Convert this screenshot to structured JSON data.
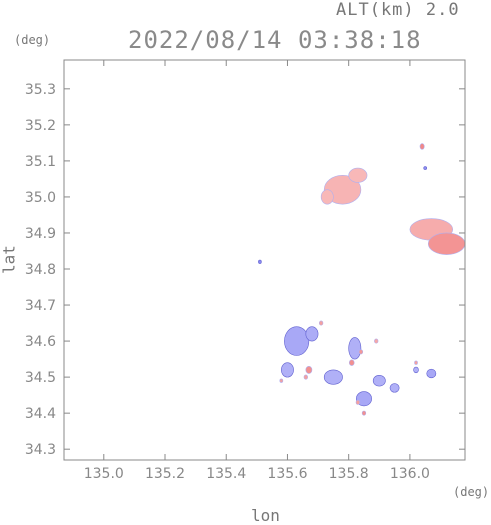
{
  "header": {
    "altitude_label": "ALT(km) 2.0",
    "datetime": "2022/08/14 03:38:18"
  },
  "axes": {
    "y_unit": "(deg)",
    "x_unit": "(deg)",
    "y_label": "lat",
    "x_label": "lon"
  },
  "chart_data": {
    "type": "heatmap",
    "title": "",
    "xlabel": "lon",
    "ylabel": "lat",
    "xlim": [
      134.87,
      136.18
    ],
    "ylim": [
      34.27,
      35.38
    ],
    "x_ticks": [
      135.0,
      135.2,
      135.4,
      135.6,
      135.8,
      136.0
    ],
    "x_tick_labels": [
      "135.0",
      "135.2",
      "135.4",
      "135.6",
      "135.8",
      "136.0"
    ],
    "y_ticks": [
      34.3,
      34.4,
      34.5,
      34.6,
      34.7,
      34.8,
      34.9,
      35.0,
      35.1,
      35.2,
      35.3
    ],
    "y_tick_labels": [
      "34.3",
      "34.4",
      "34.5",
      "34.6",
      "34.7",
      "34.8",
      "34.9",
      "35.0",
      "35.1",
      "35.2",
      "35.3"
    ],
    "colors": {
      "positive": "#f08080",
      "positive_light": "#fbd0d0",
      "negative": "#8080f0",
      "negative_light": "#d0d0fb"
    },
    "blobs": [
      {
        "lon": 135.78,
        "lat": 35.02,
        "rx": 0.06,
        "ry": 0.04,
        "sign": "positive",
        "intensity": 0.35
      },
      {
        "lon": 135.83,
        "lat": 35.06,
        "rx": 0.03,
        "ry": 0.02,
        "sign": "positive",
        "intensity": 0.3
      },
      {
        "lon": 135.73,
        "lat": 35.0,
        "rx": 0.02,
        "ry": 0.02,
        "sign": "positive",
        "intensity": 0.3
      },
      {
        "lon": 136.07,
        "lat": 34.91,
        "rx": 0.07,
        "ry": 0.03,
        "sign": "positive",
        "intensity": 0.45
      },
      {
        "lon": 136.12,
        "lat": 34.87,
        "rx": 0.06,
        "ry": 0.03,
        "sign": "positive",
        "intensity": 0.75
      },
      {
        "lon": 136.04,
        "lat": 35.14,
        "rx": 0.007,
        "ry": 0.008,
        "sign": "positive",
        "intensity": 0.9
      },
      {
        "lon": 136.05,
        "lat": 35.08,
        "rx": 0.004,
        "ry": 0.004,
        "sign": "negative",
        "intensity": 0.8
      },
      {
        "lon": 135.51,
        "lat": 34.82,
        "rx": 0.004,
        "ry": 0.005,
        "sign": "negative",
        "intensity": 0.9
      },
      {
        "lon": 135.63,
        "lat": 34.6,
        "rx": 0.04,
        "ry": 0.04,
        "sign": "negative",
        "intensity": 0.5
      },
      {
        "lon": 135.6,
        "lat": 34.52,
        "rx": 0.02,
        "ry": 0.02,
        "sign": "negative",
        "intensity": 0.4
      },
      {
        "lon": 135.68,
        "lat": 34.62,
        "rx": 0.02,
        "ry": 0.02,
        "sign": "negative",
        "intensity": 0.45
      },
      {
        "lon": 135.75,
        "lat": 34.5,
        "rx": 0.03,
        "ry": 0.02,
        "sign": "negative",
        "intensity": 0.4
      },
      {
        "lon": 135.82,
        "lat": 34.58,
        "rx": 0.02,
        "ry": 0.03,
        "sign": "negative",
        "intensity": 0.4
      },
      {
        "lon": 135.85,
        "lat": 34.44,
        "rx": 0.025,
        "ry": 0.02,
        "sign": "negative",
        "intensity": 0.5
      },
      {
        "lon": 135.9,
        "lat": 34.49,
        "rx": 0.02,
        "ry": 0.015,
        "sign": "negative",
        "intensity": 0.4
      },
      {
        "lon": 135.95,
        "lat": 34.47,
        "rx": 0.015,
        "ry": 0.012,
        "sign": "negative",
        "intensity": 0.4
      },
      {
        "lon": 136.07,
        "lat": 34.51,
        "rx": 0.015,
        "ry": 0.012,
        "sign": "negative",
        "intensity": 0.5
      },
      {
        "lon": 136.02,
        "lat": 34.52,
        "rx": 0.008,
        "ry": 0.008,
        "sign": "negative",
        "intensity": 0.4
      },
      {
        "lon": 135.67,
        "lat": 34.52,
        "rx": 0.01,
        "ry": 0.01,
        "sign": "positive",
        "intensity": 0.8
      },
      {
        "lon": 135.81,
        "lat": 34.54,
        "rx": 0.008,
        "ry": 0.008,
        "sign": "positive",
        "intensity": 0.8
      },
      {
        "lon": 135.84,
        "lat": 34.57,
        "rx": 0.006,
        "ry": 0.006,
        "sign": "positive",
        "intensity": 0.7
      },
      {
        "lon": 135.85,
        "lat": 34.4,
        "rx": 0.006,
        "ry": 0.006,
        "sign": "positive",
        "intensity": 0.8
      },
      {
        "lon": 135.83,
        "lat": 34.43,
        "rx": 0.006,
        "ry": 0.006,
        "sign": "positive",
        "intensity": 0.6
      },
      {
        "lon": 135.66,
        "lat": 34.5,
        "rx": 0.006,
        "ry": 0.006,
        "sign": "positive",
        "intensity": 0.6
      },
      {
        "lon": 135.71,
        "lat": 34.65,
        "rx": 0.006,
        "ry": 0.006,
        "sign": "positive",
        "intensity": 0.6
      },
      {
        "lon": 135.89,
        "lat": 34.6,
        "rx": 0.006,
        "ry": 0.006,
        "sign": "positive",
        "intensity": 0.5
      },
      {
        "lon": 136.02,
        "lat": 34.54,
        "rx": 0.005,
        "ry": 0.005,
        "sign": "positive",
        "intensity": 0.6
      },
      {
        "lon": 135.58,
        "lat": 34.49,
        "rx": 0.005,
        "ry": 0.005,
        "sign": "positive",
        "intensity": 0.6
      }
    ]
  }
}
